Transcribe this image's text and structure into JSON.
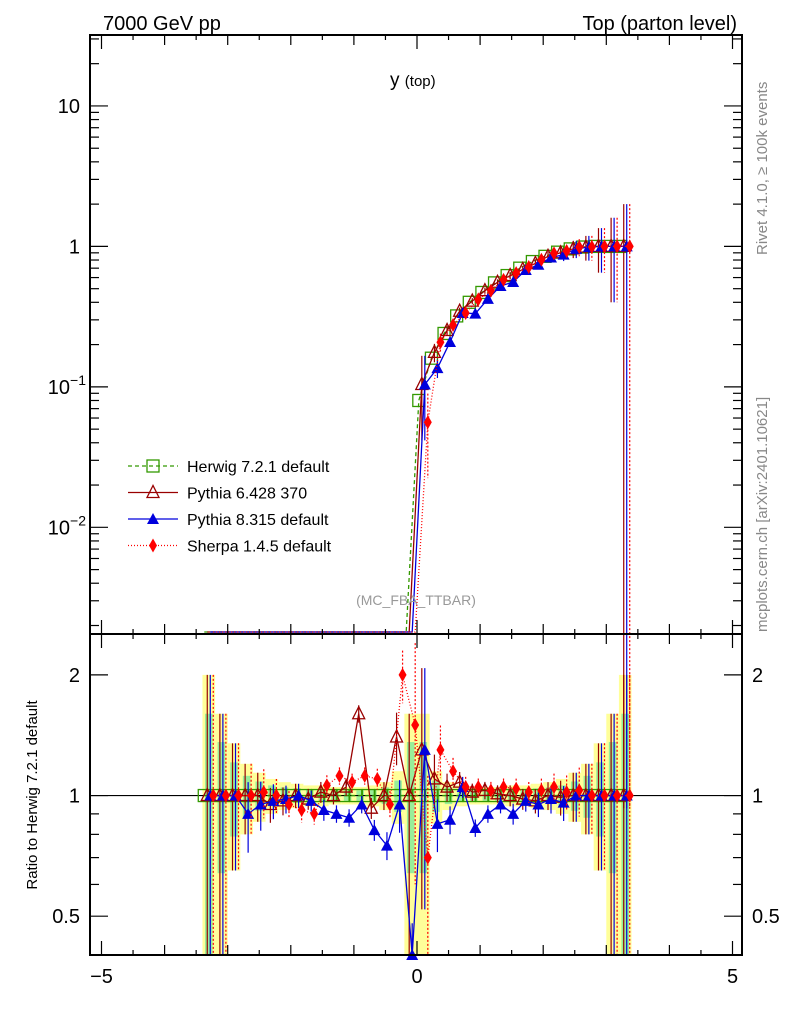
{
  "header": {
    "left": "7000 GeV pp",
    "right": "Top (parton level)",
    "title_main": "y",
    "title_sub": "(top)",
    "side_top": "Rivet 4.1.0, ≥ 100k events",
    "side_bottom": "mcplots.cern.ch [arXiv:2401.10621]",
    "analysis": "(MC_FBA_TTBAR)"
  },
  "chart_data": {
    "type": "line",
    "title": "y (top)",
    "xlabel": "",
    "ylabel": "",
    "ratio_ylabel": "Ratio to Herwig 7.2.1 default",
    "xlim": [
      -5.2,
      5.2
    ],
    "ylim_log": [
      0.00174,
      32
    ],
    "ratio_ylim_log": [
      0.4,
      2.53
    ],
    "xticks": [
      "−5",
      "0",
      "5"
    ],
    "xtick_values": [
      -5,
      0,
      5
    ],
    "yticks": [
      {
        "v": 10,
        "label": "10"
      },
      {
        "v": 1,
        "label": "1"
      },
      {
        "v": 0.1,
        "label": "10",
        "exp": "−1"
      },
      {
        "v": 0.01,
        "label": "10",
        "exp": "−2"
      }
    ],
    "ratio_yticks": [
      {
        "v": 2,
        "label": "2"
      },
      {
        "v": 1,
        "label": "1"
      },
      {
        "v": 0.5,
        "label": "0.5"
      }
    ],
    "legend_position": "center-left",
    "x": [
      -3.3,
      -3.1,
      -2.9,
      -2.7,
      -2.5,
      -2.3,
      -2.1,
      -1.9,
      -1.7,
      -1.5,
      -1.3,
      -1.1,
      -0.9,
      -0.7,
      -0.5,
      -0.3,
      -0.1,
      0.1,
      0.3,
      0.5,
      0.7,
      0.9,
      1.1,
      1.3,
      1.5,
      1.7,
      1.9,
      2.1,
      2.3,
      2.5,
      2.7,
      2.9,
      3.1,
      3.3
    ],
    "reference_values": [
      0,
      0,
      0,
      0,
      0,
      0,
      0,
      0,
      0,
      0,
      0,
      0,
      0,
      0,
      0,
      0,
      0,
      0.08,
      0.16,
      0.24,
      0.32,
      0.4,
      0.47,
      0.55,
      0.62,
      0.7,
      0.78,
      0.85,
      0.91,
      0.96,
      0.99,
      1.0,
      1.0,
      1.0
    ],
    "band_rel_err": [
      1.0,
      0.6,
      0.35,
      0.2,
      0.14,
      0.1,
      0.08,
      0.07,
      0.06,
      0.06,
      0.05,
      0.05,
      0.05,
      0.06,
      0.08,
      0.15,
      0.6,
      0.6,
      0.15,
      0.08,
      0.06,
      0.05,
      0.05,
      0.05,
      0.06,
      0.06,
      0.07,
      0.08,
      0.1,
      0.14,
      0.2,
      0.35,
      0.6,
      1.0
    ],
    "series": [
      {
        "name": "Herwig 7.2.1 default",
        "color": "#339900",
        "marker": "open-square",
        "dash": "4,3",
        "ratio": [
          1,
          1,
          1,
          1,
          1,
          1,
          1,
          1,
          1,
          1,
          1,
          1,
          1,
          1,
          1,
          1,
          1,
          1,
          1,
          1,
          1,
          1,
          1,
          1,
          1,
          1,
          1,
          1,
          1,
          1,
          1,
          1,
          1,
          1
        ]
      },
      {
        "name": "Pythia 6.428 370",
        "color": "#990000",
        "marker": "open-triangle",
        "dash": "",
        "ratio": [
          1,
          1,
          1,
          1,
          1.0,
          0.95,
          0.97,
          1.0,
          0.98,
          1.02,
          1.0,
          1.05,
          1.6,
          0.93,
          1.0,
          1.4,
          1.0,
          1.3,
          1.1,
          1.05,
          1.08,
          1.02,
          1.03,
          1.01,
          1.0,
          0.98,
          0.97,
          1.0,
          0.99,
          1.0,
          1.0,
          1.0,
          1.0,
          1.0
        ]
      },
      {
        "name": "Pythia 8.315 default",
        "color": "#0000dd",
        "marker": "filled-triangle",
        "dash": "",
        "ratio": [
          1,
          1,
          1,
          0.9,
          0.95,
          0.97,
          0.98,
          1.0,
          0.97,
          0.92,
          0.9,
          0.88,
          0.95,
          0.82,
          0.75,
          0.95,
          0.3,
          1.3,
          0.85,
          0.87,
          1.05,
          0.83,
          0.9,
          0.95,
          0.9,
          0.97,
          0.95,
          0.98,
          0.96,
          1.0,
          1.0,
          1.0,
          1.0,
          1.0
        ]
      },
      {
        "name": "Sherpa 1.4.5 default",
        "color": "#ff0000",
        "marker": "filled-diamond",
        "dash": "1,2",
        "ratio": [
          1,
          1,
          1,
          1,
          1.02,
          1.0,
          0.95,
          0.92,
          0.9,
          1.06,
          1.12,
          1.08,
          1.12,
          1.1,
          0.95,
          2.0,
          1.5,
          0.7,
          1.3,
          1.15,
          1.05,
          1.05,
          1.03,
          1.05,
          1.04,
          1.02,
          1.03,
          1.05,
          1.02,
          1.03,
          1.0,
          1.0,
          1.0,
          1.0
        ]
      }
    ]
  }
}
